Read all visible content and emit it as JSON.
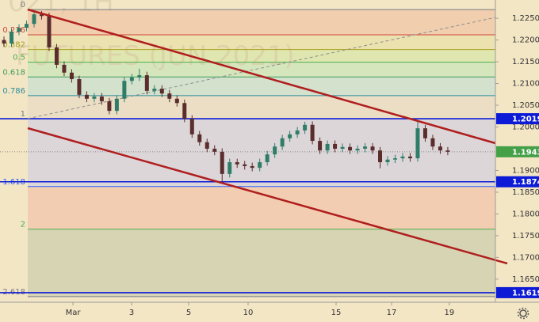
{
  "chart_data": {
    "type": "candlestick",
    "watermark": [
      "021, 1H",
      "FUTURES (JUN 2021)"
    ],
    "open": [
      1.22,
      1.2192,
      1.2219,
      1.2228,
      1.2237,
      1.2259,
      1.2255,
      1.2183,
      1.2143,
      1.2125,
      1.211,
      1.2074,
      1.2065,
      1.207,
      1.2059,
      1.2037,
      1.2065,
      1.2106,
      1.2114,
      1.2119,
      1.2083,
      1.2088,
      1.2077,
      1.2065,
      1.2055,
      1.2019,
      1.1983,
      1.1965,
      1.195,
      1.1943,
      1.1892,
      1.1919,
      1.1914,
      1.191,
      1.1906,
      1.1919,
      1.1937,
      1.1955,
      1.1974,
      1.1983,
      1.1992,
      1.2005,
      1.1968,
      1.1946,
      1.1961,
      1.195,
      1.1954,
      1.1946,
      1.195,
      1.1955,
      1.1946,
      1.1919,
      1.1925,
      1.1928,
      1.1932,
      1.1928,
      1.1997,
      1.1974,
      1.1955,
      1.1946
    ],
    "high": [
      1.2208,
      1.2227,
      1.2236,
      1.2245,
      1.2268,
      1.2267,
      1.2263,
      1.2191,
      1.2151,
      1.2133,
      1.2118,
      1.2082,
      1.2078,
      1.2078,
      1.2067,
      1.2073,
      1.2114,
      1.2122,
      1.2134,
      1.2127,
      1.2096,
      1.2096,
      1.2085,
      1.2073,
      1.2063,
      1.2027,
      1.1991,
      1.1973,
      1.1958,
      1.1951,
      1.1927,
      1.1927,
      1.1922,
      1.1918,
      1.1927,
      1.1945,
      1.1963,
      1.1982,
      1.1991,
      1.2,
      1.2012,
      1.2013,
      1.1976,
      1.1969,
      1.1969,
      1.1962,
      1.1962,
      1.1958,
      1.1963,
      1.1963,
      1.1954,
      1.1933,
      1.1936,
      1.194,
      1.194,
      1.2012,
      1.2005,
      1.1982,
      1.1963,
      1.1954
    ],
    "low": [
      1.2184,
      1.2184,
      1.2211,
      1.222,
      1.2229,
      1.2247,
      1.2175,
      1.2135,
      1.2117,
      1.2102,
      1.2066,
      1.2057,
      1.2057,
      1.2051,
      1.2029,
      1.2029,
      1.2057,
      1.2098,
      1.2106,
      1.2075,
      1.2075,
      1.2069,
      1.2057,
      1.2047,
      1.2011,
      1.1975,
      1.1957,
      1.1942,
      1.1935,
      1.1874,
      1.1884,
      1.1906,
      1.1902,
      1.1898,
      1.1898,
      1.1911,
      1.1929,
      1.1947,
      1.1966,
      1.1975,
      1.1984,
      1.196,
      1.1938,
      1.1938,
      1.1942,
      1.1942,
      1.1938,
      1.1938,
      1.1942,
      1.1938,
      1.1905,
      1.1911,
      1.1917,
      1.192,
      1.192,
      1.192,
      1.1966,
      1.1947,
      1.1938,
      1.1935
    ],
    "close": [
      1.2192,
      1.2219,
      1.2228,
      1.2237,
      1.2259,
      1.2255,
      1.2183,
      1.2143,
      1.2125,
      1.211,
      1.2074,
      1.2065,
      1.207,
      1.2059,
      1.2037,
      1.2065,
      1.2106,
      1.2114,
      1.2119,
      1.2083,
      1.2088,
      1.2077,
      1.2065,
      1.2055,
      1.2019,
      1.1983,
      1.1965,
      1.195,
      1.1943,
      1.1892,
      1.1919,
      1.1914,
      1.191,
      1.1906,
      1.1919,
      1.1937,
      1.1955,
      1.1974,
      1.1983,
      1.1992,
      1.2005,
      1.1968,
      1.1946,
      1.1961,
      1.195,
      1.1954,
      1.1946,
      1.195,
      1.1955,
      1.1946,
      1.1919,
      1.1925,
      1.1928,
      1.1932,
      1.1928,
      1.1997,
      1.1974,
      1.1955,
      1.1946,
      1.1943
    ],
    "up_color": "#2f7d68",
    "down_color": "#5b2d2d",
    "xlim": [
      -0.53,
      65.33
    ],
    "xticks": [
      {
        "value": 9.17,
        "label": "Mar"
      },
      {
        "value": 16.97,
        "label": "3"
      },
      {
        "value": 24.55,
        "label": "5"
      },
      {
        "value": 32.45,
        "label": "10"
      },
      {
        "value": 44.15,
        "label": "15"
      },
      {
        "value": 51.53,
        "label": "17"
      },
      {
        "value": 59.2,
        "label": "19"
      }
    ],
    "ylim": [
      1.1597,
      1.2292
    ],
    "yticks": [
      {
        "value": 1.225,
        "label": "1.2250"
      },
      {
        "value": 1.22,
        "label": "1.2200"
      },
      {
        "value": 1.215,
        "label": "1.2150"
      },
      {
        "value": 1.21,
        "label": "1.2100"
      },
      {
        "value": 1.205,
        "label": "1.2050"
      },
      {
        "value": 1.2,
        "label": "1.2000"
      },
      {
        "value": 1.19,
        "label": "1.1900"
      },
      {
        "value": 1.185,
        "label": "1.1850"
      },
      {
        "value": 1.18,
        "label": "1.1800"
      },
      {
        "value": 1.175,
        "label": "1.1750"
      },
      {
        "value": 1.17,
        "label": "1.1700"
      },
      {
        "value": 1.165,
        "label": "1.1650"
      }
    ],
    "fib_levels": [
      {
        "label": "0",
        "value": 1.227,
        "color": "#787b86",
        "fill": "#f1cfae"
      },
      {
        "label": "0.236",
        "value": 1.2212,
        "color": "#d0453a",
        "fill": "#ebe2b0"
      },
      {
        "label": "0.382",
        "value": 1.2178,
        "color": "#a9a21e",
        "fill": "#dfe6b0"
      },
      {
        "label": "0.5",
        "value": 1.2149,
        "color": "#4caf50",
        "fill": "#d5e6bd"
      },
      {
        "label": "0.618",
        "value": 1.2115,
        "color": "#3e9e5a",
        "fill": "#d3e1cd"
      },
      {
        "label": "0.786",
        "value": 1.2072,
        "color": "#2f8c9a",
        "fill": "#ebdec5"
      },
      {
        "label": "1",
        "value": 1.2019,
        "color": "#787b86",
        "fill": "#dcd6d8"
      },
      {
        "label": "1.618",
        "value": 1.1863,
        "color": "#2962ff",
        "fill": "#f2cdb1"
      },
      {
        "label": "2",
        "value": 1.1765,
        "color": "#4caf50",
        "fill": "#d6d4b3"
      },
      {
        "label": "2.618",
        "value": 1.161,
        "color": "#787b86"
      }
    ],
    "price_lines": [
      {
        "value": 1.2019,
        "label": "1.2019",
        "color": "#0d1bd6"
      },
      {
        "value": 1.1874,
        "label": "1.1874",
        "color": "#0d1bd6"
      },
      {
        "value": 1.1619,
        "label": "1.1619",
        "color": "#0d1bd6"
      }
    ],
    "last_price": {
      "value": 1.1943,
      "label": "1.1943",
      "color": "#43a047"
    }
  }
}
